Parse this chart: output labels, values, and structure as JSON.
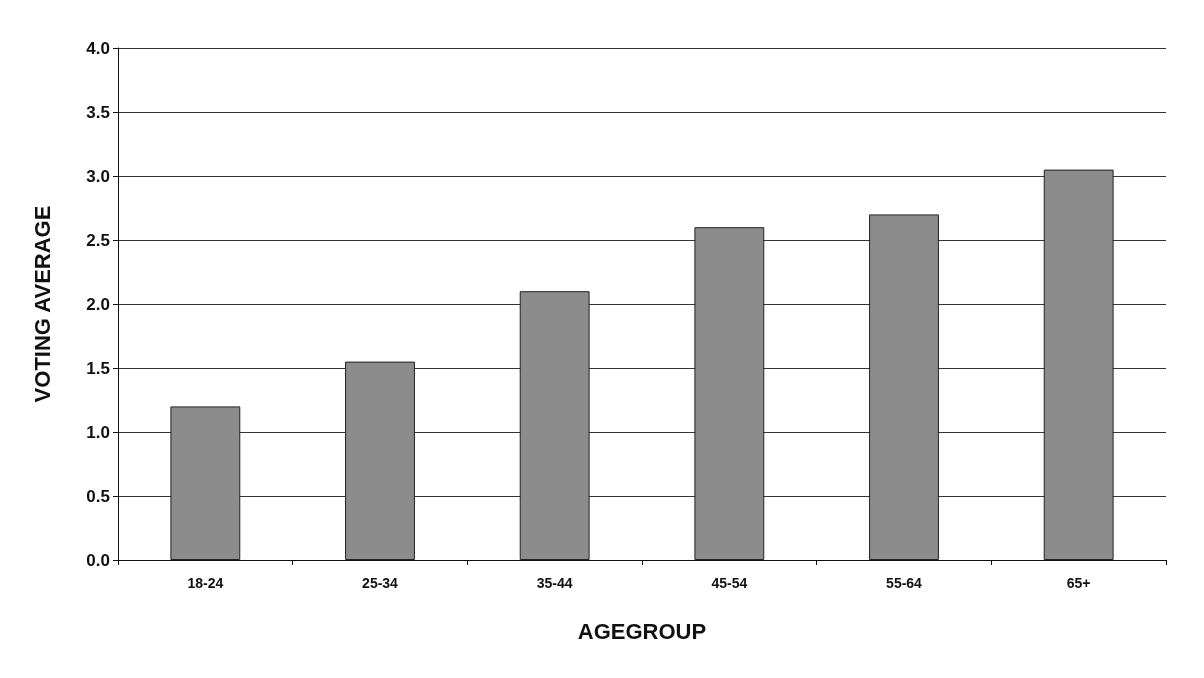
{
  "chart_data": {
    "type": "bar",
    "xlabel": "AGEGROUP",
    "ylabel": "VOTING AVERAGE",
    "categories": [
      "18-24",
      "25-34",
      "35-44",
      "45-54",
      "55-64",
      "65+"
    ],
    "values": [
      1.2,
      1.55,
      2.1,
      2.6,
      2.7,
      3.05
    ],
    "color": "#8c8c8c",
    "ylim": [
      0,
      4
    ],
    "yticks": [
      {
        "value": 0,
        "label": "0.0"
      },
      {
        "value": 0.5,
        "label": "0.5"
      },
      {
        "value": 1,
        "label": "1.0"
      },
      {
        "value": 1.5,
        "label": "1.5"
      },
      {
        "value": 2,
        "label": "2.0"
      },
      {
        "value": 2.5,
        "label": "2.5"
      },
      {
        "value": 3,
        "label": "3.0"
      },
      {
        "value": 3.5,
        "label": "3.5"
      },
      {
        "value": 4,
        "label": "4.0"
      }
    ],
    "grid": "y"
  }
}
